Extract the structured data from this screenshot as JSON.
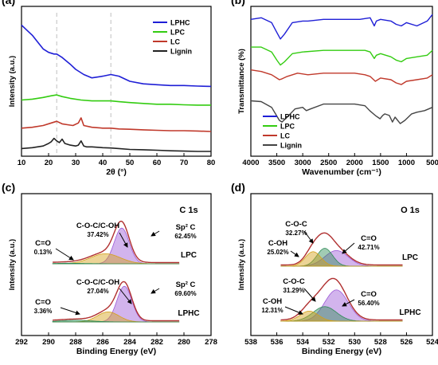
{
  "chart_data": [
    {
      "panel": "(a)",
      "type": "line",
      "xlabel": "2θ (°)",
      "ylabel": "Intensity (a.u.)",
      "xlim": [
        10,
        80
      ],
      "xticks": [
        "10",
        "20",
        "30",
        "40",
        "50",
        "60",
        "70",
        "80"
      ],
      "legend_position": "top-right",
      "ref_lines": [
        23,
        43
      ],
      "series": [
        {
          "name": "LPHC",
          "color": "#1f1fd6",
          "x": [
            10,
            12,
            14,
            16,
            18,
            20,
            22,
            23,
            25,
            28,
            30,
            33,
            36,
            40,
            43,
            46,
            50,
            55,
            60,
            65,
            70,
            75,
            80
          ],
          "y": [
            7.5,
            7.2,
            6.9,
            6.5,
            6.1,
            5.9,
            5.8,
            5.8,
            5.6,
            5.2,
            4.9,
            4.6,
            4.4,
            4.5,
            4.6,
            4.5,
            4.2,
            4.05,
            4.0,
            3.95,
            3.95,
            3.92,
            3.9
          ]
        },
        {
          "name": "LPC",
          "color": "#33cc11",
          "x": [
            10,
            14,
            18,
            21,
            23,
            25,
            28,
            32,
            36,
            40,
            43,
            46,
            50,
            55,
            60,
            65,
            70,
            75,
            80
          ],
          "y": [
            3.1,
            3.15,
            3.25,
            3.35,
            3.4,
            3.3,
            3.2,
            3.1,
            3.05,
            3.05,
            3.05,
            3.0,
            2.95,
            2.9,
            2.85,
            2.85,
            2.82,
            2.8,
            2.8
          ]
        },
        {
          "name": "LC",
          "color": "#c0392b",
          "x": [
            10,
            14,
            18,
            21,
            23,
            25,
            27,
            29,
            31,
            32,
            33,
            36,
            40,
            43,
            46,
            50,
            55,
            60,
            65,
            70,
            75,
            80
          ],
          "y": [
            1.45,
            1.5,
            1.6,
            1.75,
            1.85,
            1.7,
            1.65,
            1.6,
            1.75,
            2.05,
            1.6,
            1.5,
            1.45,
            1.45,
            1.4,
            1.38,
            1.35,
            1.32,
            1.3,
            1.3,
            1.28,
            1.25
          ]
        },
        {
          "name": "Lignin",
          "color": "#222222",
          "x": [
            10,
            14,
            18,
            20,
            21,
            22,
            23,
            24,
            25,
            26,
            28,
            30,
            31,
            32,
            33,
            34,
            36,
            40,
            43,
            46,
            50,
            55,
            60,
            65,
            70,
            75,
            80
          ],
          "y": [
            0.25,
            0.3,
            0.4,
            0.55,
            0.65,
            0.85,
            0.7,
            0.6,
            0.8,
            0.55,
            0.45,
            0.4,
            0.45,
            0.7,
            0.4,
            0.35,
            0.35,
            0.3,
            0.28,
            0.25,
            0.2,
            0.18,
            0.15,
            0.12,
            0.1,
            0.08,
            0.08
          ]
        }
      ]
    },
    {
      "panel": "(b)",
      "type": "line",
      "xlabel": "Wavenumber (cm⁻¹)",
      "ylabel": "Transmittance (%)",
      "xlim": [
        4000,
        500
      ],
      "xticks": [
        "4000",
        "3500",
        "3000",
        "2500",
        "2000",
        "1500",
        "1000",
        "500"
      ],
      "legend_position": "bottom-left",
      "series": [
        {
          "name": "LPHC",
          "color": "#1f1fd6",
          "x": [
            4000,
            3800,
            3600,
            3500,
            3430,
            3350,
            3200,
            3000,
            2900,
            2600,
            2300,
            2100,
            1900,
            1700,
            1620,
            1580,
            1500,
            1300,
            1200,
            1100,
            1000,
            800,
            600,
            500
          ],
          "y": [
            8.4,
            8.5,
            8.2,
            7.6,
            7.2,
            7.5,
            8.2,
            8.3,
            8.3,
            8.4,
            8.4,
            8.4,
            8.4,
            8.5,
            8.0,
            8.3,
            8.4,
            8.3,
            8.1,
            8.0,
            8.2,
            8.0,
            8.3,
            8.7
          ]
        },
        {
          "name": "LPC",
          "color": "#33cc11",
          "x": [
            4000,
            3800,
            3600,
            3500,
            3430,
            3350,
            3200,
            3000,
            2600,
            2300,
            2000,
            1800,
            1700,
            1620,
            1580,
            1500,
            1300,
            1200,
            1100,
            1000,
            800,
            600,
            500
          ],
          "y": [
            6.7,
            6.7,
            6.4,
            5.9,
            5.6,
            5.8,
            6.3,
            6.4,
            6.5,
            6.5,
            6.5,
            6.5,
            6.4,
            6.0,
            6.2,
            6.3,
            6.1,
            5.9,
            5.8,
            6.0,
            6.1,
            6.2,
            6.5
          ]
        },
        {
          "name": "LC",
          "color": "#c0392b",
          "x": [
            4000,
            3800,
            3600,
            3450,
            3400,
            3300,
            3100,
            2900,
            2600,
            2300,
            2000,
            1800,
            1700,
            1600,
            1500,
            1300,
            1200,
            1100,
            1000,
            800,
            600,
            500
          ],
          "y": [
            5.3,
            5.2,
            5.0,
            4.7,
            4.75,
            4.9,
            5.1,
            5.0,
            5.1,
            5.1,
            5.1,
            5.0,
            4.9,
            4.6,
            4.8,
            4.7,
            4.5,
            4.4,
            4.6,
            4.7,
            4.8,
            5.0
          ]
        },
        {
          "name": "Lignin",
          "color": "#444444",
          "x": [
            4000,
            3800,
            3600,
            3450,
            3400,
            3300,
            3150,
            3000,
            2930,
            2850,
            2600,
            2300,
            2000,
            1800,
            1710,
            1600,
            1510,
            1460,
            1420,
            1330,
            1270,
            1220,
            1120,
            1030,
            900,
            800,
            650,
            500
          ],
          "y": [
            3.4,
            3.35,
            3.0,
            2.2,
            2.1,
            2.4,
            2.9,
            3.0,
            2.8,
            2.9,
            3.2,
            3.2,
            3.2,
            3.1,
            2.8,
            2.5,
            2.3,
            2.5,
            2.6,
            2.5,
            2.1,
            2.4,
            2.0,
            2.2,
            2.6,
            2.7,
            2.8,
            3.0
          ]
        }
      ]
    },
    {
      "panel": "(c)",
      "type": "area",
      "title": "C 1s",
      "xlabel": "Binding Energy (eV)",
      "ylabel": "Intensity (a.u.)",
      "xlim": [
        292,
        278
      ],
      "xticks": [
        "292",
        "290",
        "288",
        "286",
        "284",
        "282",
        "280",
        "278"
      ],
      "samples": [
        {
          "name": "LPC",
          "peaks": [
            {
              "label": "Sp² C",
              "value": "62.45%",
              "center": 284.6,
              "height": 3.2,
              "width": 0.55,
              "color": "#9b59d6"
            },
            {
              "label": "C-O-C/C-OH",
              "value": "37.42%",
              "center": 285.8,
              "height": 0.9,
              "width": 1.1,
              "color": "#d4a017"
            },
            {
              "label": "C=O",
              "value": "0.13%",
              "center": 288.5,
              "height": 0.05,
              "width": 1.2,
              "color": "#2e8b57"
            }
          ]
        },
        {
          "name": "LPHC",
          "peaks": [
            {
              "label": "Sp² C",
              "value": "69.60%",
              "center": 284.4,
              "height": 3.2,
              "width": 0.55,
              "color": "#9b59d6"
            },
            {
              "label": "C-O-C/C-OH",
              "value": "27.04%",
              "center": 285.6,
              "height": 0.9,
              "width": 0.8,
              "color": "#d4a017"
            },
            {
              "label": "C=O",
              "value": "3.36%",
              "center": 288.0,
              "height": 0.15,
              "width": 1.2,
              "color": "#2e8b57"
            }
          ]
        }
      ]
    },
    {
      "panel": "(d)",
      "type": "area",
      "title": "O 1s",
      "xlabel": "Binding Energy (eV)",
      "ylabel": "Intensity (a.u.)",
      "xlim": [
        538,
        524
      ],
      "xticks": [
        "538",
        "536",
        "534",
        "532",
        "530",
        "528",
        "526",
        "524"
      ],
      "samples": [
        {
          "name": "LPC",
          "peaks": [
            {
              "label": "C=O",
              "value": "42.71%",
              "center": 531.4,
              "height": 1.4,
              "width": 0.9,
              "color": "#9b59d6"
            },
            {
              "label": "C-O-C",
              "value": "32.27%",
              "center": 532.3,
              "height": 1.6,
              "width": 0.6,
              "color": "#2e8b57"
            },
            {
              "label": "C-OH",
              "value": "25.02%",
              "center": 533.2,
              "height": 1.3,
              "width": 0.6,
              "color": "#d4a017"
            }
          ]
        },
        {
          "name": "LPHC",
          "peaks": [
            {
              "label": "C=O",
              "value": "56.40%",
              "center": 531.4,
              "height": 2.8,
              "width": 0.9,
              "color": "#9b59d6"
            },
            {
              "label": "C-O-C",
              "value": "31.29%",
              "center": 532.3,
              "height": 1.3,
              "width": 0.9,
              "color": "#2e8b57"
            },
            {
              "label": "C-OH",
              "value": "12.31%",
              "center": 533.5,
              "height": 0.9,
              "width": 0.7,
              "color": "#d4a017"
            }
          ]
        }
      ]
    }
  ]
}
